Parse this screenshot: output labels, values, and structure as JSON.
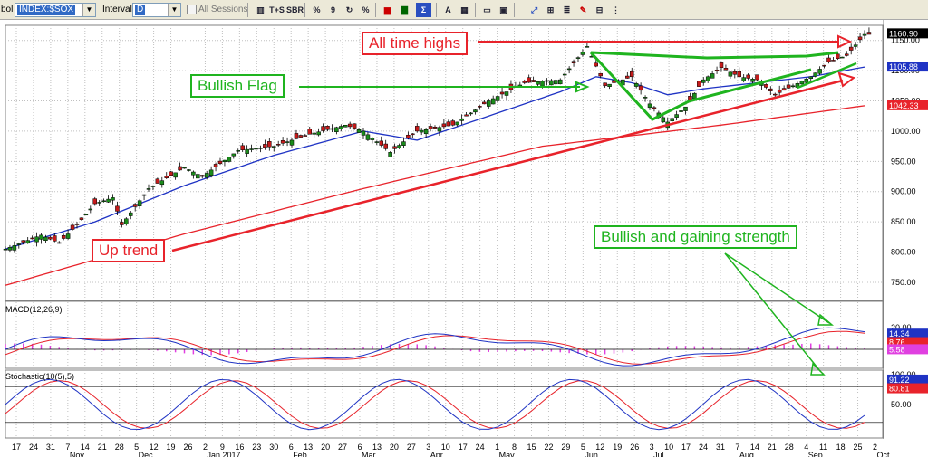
{
  "toolbar": {
    "symbol_label_partial": "bol",
    "symbol_value": "INDEX:$SOX",
    "interval_label": "Interval",
    "interval_value": "D",
    "all_sessions_label": "All Sessions",
    "buttons": [
      "T+S",
      "SBR",
      "%",
      "9",
      "%",
      "A"
    ]
  },
  "annotations": {
    "all_time_highs": "All time highs",
    "bullish_flag": "Bullish Flag",
    "up_trend": "Up trend",
    "bullish_gaining": "Bullish and gaining strength"
  },
  "indicators": {
    "macd_label": "MACD(12,26,9)",
    "stoch_label": "Stochastic(10(5),5)"
  },
  "price_axis": {
    "ticks": [
      "1150.00",
      "1100.00",
      "1050.00",
      "1000.00",
      "950.00",
      "900.00",
      "850.00",
      "800.00",
      "750.00"
    ],
    "tick_values": [
      1150,
      1100,
      1050,
      1000,
      950,
      900,
      850,
      800,
      750
    ],
    "last_price": "1160.90",
    "ma_fast": "1105.88",
    "ma_slow": "1042.33",
    "last_price_color": "#000000",
    "ma_fast_color": "#1f33c4",
    "ma_slow_color": "#e8232b"
  },
  "macd_axis": {
    "ticks": [
      "20.00",
      "0.00"
    ],
    "tick_values": [
      20,
      0
    ],
    "macd_val": "14.34",
    "signal_val": "8.76",
    "hist_val": "5.58"
  },
  "stoch_axis": {
    "ticks": [
      "100.00",
      "50.00"
    ],
    "tick_values": [
      100,
      50
    ],
    "k_val": "91.22",
    "d_val": "80.81"
  },
  "x_axis": {
    "day_ticks": [
      "17",
      "24",
      "31",
      "7",
      "14",
      "21",
      "28",
      "5",
      "12",
      "19",
      "26",
      "2",
      "9",
      "16",
      "23",
      "30",
      "6",
      "13",
      "20",
      "27",
      "6",
      "13",
      "20",
      "27",
      "3",
      "10",
      "17",
      "24",
      "1",
      "8",
      "15",
      "22",
      "29",
      "5",
      "12",
      "19",
      "26",
      "3",
      "10",
      "17",
      "24",
      "31",
      "7",
      "14",
      "21",
      "28",
      "4",
      "11",
      "18",
      "25",
      "2"
    ],
    "month_labels": [
      {
        "label": "Nov",
        "index": 3
      },
      {
        "label": "Dec",
        "index": 7
      },
      {
        "label": "Jan 2017",
        "index": 11
      },
      {
        "label": "Feb",
        "index": 16
      },
      {
        "label": "Mar",
        "index": 20
      },
      {
        "label": "Apr",
        "index": 24
      },
      {
        "label": "May",
        "index": 28
      },
      {
        "label": "Jun",
        "index": 33
      },
      {
        "label": "Jul",
        "index": 37
      },
      {
        "label": "Aug",
        "index": 42
      },
      {
        "label": "Sep",
        "index": 46
      },
      {
        "label": "Oct",
        "index": 50
      }
    ]
  },
  "chart_data": {
    "type": "line",
    "title": "",
    "series_desc": "Daily candlesticks with two moving averages",
    "price_path": [
      [
        0,
        805
      ],
      [
        4,
        828
      ],
      [
        6,
        815
      ],
      [
        8,
        845
      ],
      [
        10,
        880
      ],
      [
        12,
        890
      ],
      [
        13,
        845
      ],
      [
        16,
        905
      ],
      [
        20,
        940
      ],
      [
        22,
        925
      ],
      [
        26,
        968
      ],
      [
        30,
        975
      ],
      [
        34,
        995
      ],
      [
        38,
        1010
      ],
      [
        40,
        1000
      ],
      [
        43,
        965
      ],
      [
        46,
        1000
      ],
      [
        50,
        1010
      ],
      [
        54,
        1050
      ],
      [
        58,
        1080
      ],
      [
        62,
        1085
      ],
      [
        65,
        1140
      ],
      [
        67,
        1075
      ],
      [
        70,
        1090
      ],
      [
        72,
        1045
      ],
      [
        74,
        1015
      ],
      [
        76,
        1040
      ],
      [
        78,
        1085
      ],
      [
        80,
        1105
      ],
      [
        82,
        1090
      ],
      [
        84,
        1085
      ],
      [
        86,
        1060
      ],
      [
        88,
        1075
      ],
      [
        90,
        1090
      ],
      [
        92,
        1115
      ],
      [
        94,
        1125
      ],
      [
        96,
        1160
      ]
    ],
    "ma_fast_path": [
      [
        0,
        805
      ],
      [
        10,
        850
      ],
      [
        20,
        910
      ],
      [
        30,
        960
      ],
      [
        40,
        1000
      ],
      [
        46,
        985
      ],
      [
        50,
        1005
      ],
      [
        56,
        1035
      ],
      [
        62,
        1065
      ],
      [
        66,
        1090
      ],
      [
        70,
        1080
      ],
      [
        74,
        1060
      ],
      [
        78,
        1070
      ],
      [
        84,
        1080
      ],
      [
        90,
        1090
      ],
      [
        96,
        1106
      ]
    ],
    "ma_slow_path": [
      [
        0,
        745
      ],
      [
        20,
        830
      ],
      [
        40,
        905
      ],
      [
        60,
        975
      ],
      [
        80,
        1010
      ],
      [
        96,
        1042
      ]
    ],
    "y_range": [
      720,
      1175
    ]
  },
  "colors": {
    "grid": "#c0c0c0",
    "up": "#1b8c1b",
    "down": "#c51b1b",
    "annotation_red": "#e8232b",
    "annotation_green": "#1fb41f"
  }
}
